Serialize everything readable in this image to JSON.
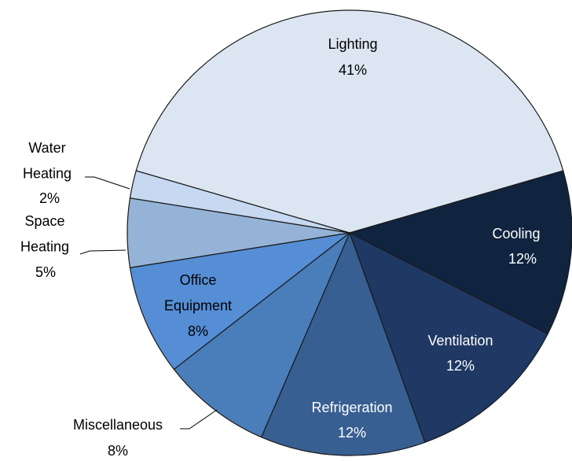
{
  "chart_data": {
    "type": "pie",
    "categories": [
      "Lighting",
      "Cooling",
      "Ventilation",
      "Refrigeration",
      "Miscellaneous",
      "Office Equipment",
      "Space Heating",
      "Water Heating"
    ],
    "values": [
      41,
      12,
      12,
      12,
      8,
      8,
      5,
      2
    ],
    "value_labels": [
      "41%",
      "12%",
      "12%",
      "12%",
      "8%",
      "8%",
      "5%",
      "2%"
    ],
    "colors": [
      "#dce6f2",
      "#10243f",
      "#1f3864",
      "#375f92",
      "#4a7ebb",
      "#558ed5",
      "#95b3d7",
      "#c6d9f1"
    ]
  }
}
